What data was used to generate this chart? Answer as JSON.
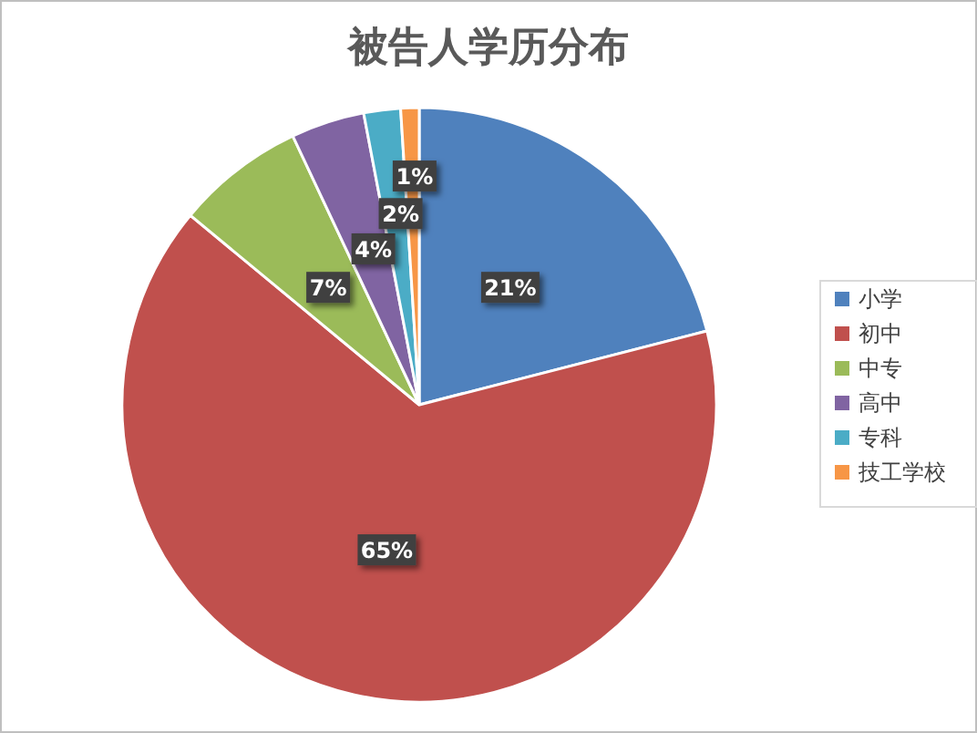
{
  "chart_data": {
    "type": "pie",
    "title": "被告人学历分布",
    "categories": [
      "小学",
      "初中",
      "中专",
      "高中",
      "专科",
      "技工学校"
    ],
    "values": [
      21,
      65,
      7,
      4,
      2,
      1
    ],
    "colors": [
      "#4f81bd",
      "#c0504d",
      "#9bbb59",
      "#8064a2",
      "#4bacc6",
      "#f79646"
    ],
    "value_labels": [
      "21%",
      "65%",
      "7%",
      "4%",
      "2%",
      "1%"
    ],
    "legend": "right"
  }
}
